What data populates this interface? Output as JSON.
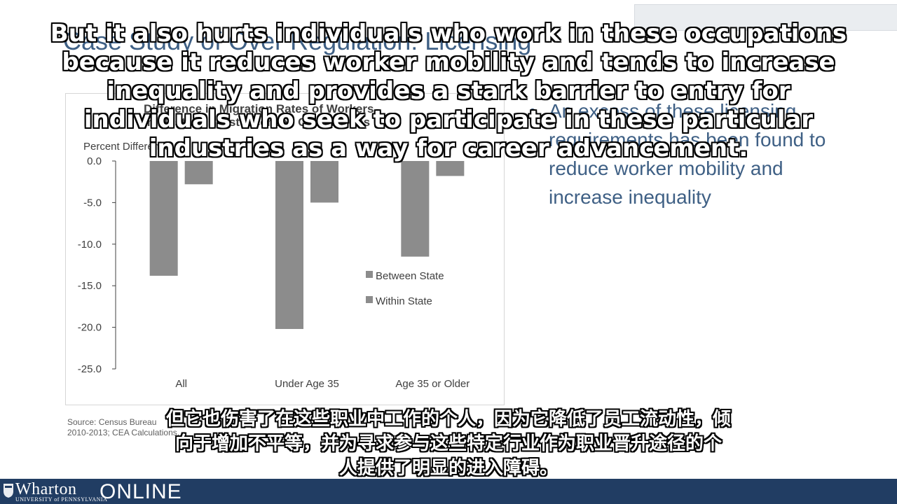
{
  "slide": {
    "title": "Case Study of Over Regulation: Licensing",
    "bullet_text": "An excess of these licensing requirements has been found to reduce worker mobility and increase inequality",
    "source_line1": "Source: Census Bureau",
    "source_line2": "2010-2013; CEA Calculations."
  },
  "captions": {
    "english_lines": [
      "But it also hurts individuals who work in these occupations",
      "because it reduces worker mobility and tends to increase",
      "inequality and provides a stark barrier to entry for",
      "individuals who seek to participate in these particular",
      "industries as a way for career advancement."
    ],
    "chinese_lines": [
      "但它也伤害了在这些职业中工作的个人，因为它降低了员工流动性，倾",
      "向于增加不平等，并为寻求参与这些特定行业作为职业晋升途径的个",
      "人提供了明显的进入障碍。"
    ]
  },
  "footer": {
    "brand": "Wharton",
    "brand_sub": "UNIVERSITY of PENNSYLVANIA",
    "online": "ONLINE"
  },
  "chart_data": {
    "type": "bar",
    "title_line1": "Difference in Migration Rates of Workers",
    "title_line2": "in Most vs. Least Licensed Occupations",
    "ylabel": "Percent Difference",
    "categories": [
      "All",
      "Under Age 35",
      "Age 35 or Older"
    ],
    "series": [
      {
        "name": "Between State",
        "values": [
          -13.8,
          -20.2,
          -11.5
        ],
        "color": "#8c8c8c"
      },
      {
        "name": "Within State",
        "values": [
          -2.8,
          -5.0,
          -1.8
        ],
        "color": "#8c8c8c"
      }
    ],
    "yticks": [
      "0.0",
      "-5.0",
      "-10.0",
      "-15.0",
      "-20.0",
      "-25.0"
    ],
    "ylim": [
      -25,
      0
    ],
    "legend_position": "right"
  }
}
